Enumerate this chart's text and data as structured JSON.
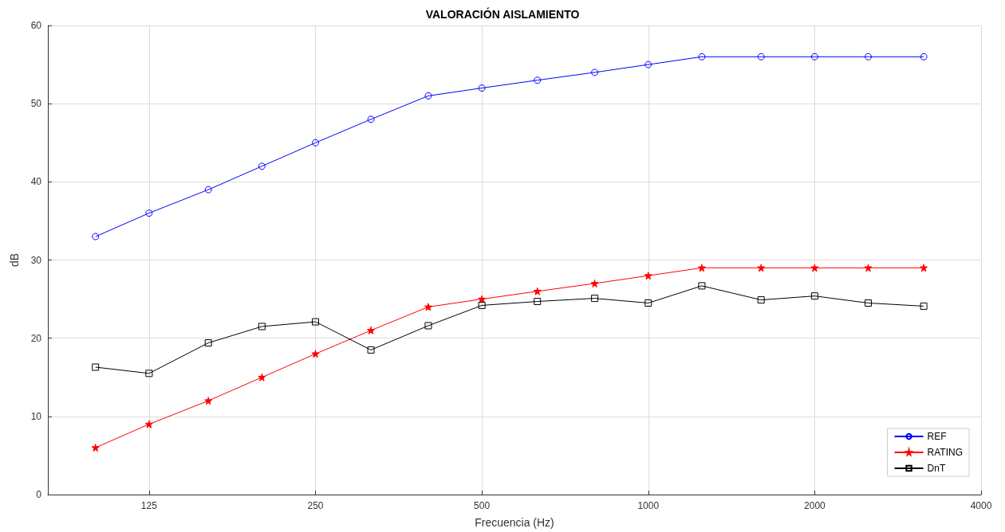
{
  "chart_data": {
    "type": "line",
    "title": "VALORACIÓN AISLAMIENTO",
    "xlabel": "Frecuencia (Hz)",
    "ylabel": "dB",
    "x": [
      100,
      125,
      160,
      200,
      250,
      315,
      400,
      500,
      630,
      800,
      1000,
      1250,
      1600,
      2000,
      2500,
      3150
    ],
    "series": [
      {
        "name": "REF",
        "color": "#0000ff",
        "marker": "circle",
        "values": [
          33,
          36,
          39,
          42,
          45,
          48,
          51,
          52,
          53,
          54,
          55,
          56,
          56,
          56,
          56,
          56
        ]
      },
      {
        "name": "RATING",
        "color": "#ff0000",
        "marker": "star",
        "values": [
          6,
          9,
          12,
          15,
          18,
          21,
          24,
          25,
          26,
          27,
          28,
          29,
          29,
          29,
          29,
          29
        ]
      },
      {
        "name": "DnT",
        "color": "#000000",
        "marker": "square",
        "values": [
          16.3,
          15.5,
          19.4,
          21.5,
          22.1,
          18.5,
          21.6,
          24.2,
          24.7,
          25.1,
          24.5,
          26.7,
          24.9,
          25.4,
          24.5,
          24.1
        ]
      }
    ],
    "log": "x",
    "xlim": [
      82,
      4000
    ],
    "xticks": [
      125,
      250,
      500,
      1000,
      2000,
      4000
    ],
    "ylim": [
      0,
      60
    ],
    "yticks": [
      0,
      10,
      20,
      30,
      40,
      50,
      60
    ],
    "grid": true,
    "legend": "bottom right",
    "line_style": "solid"
  }
}
